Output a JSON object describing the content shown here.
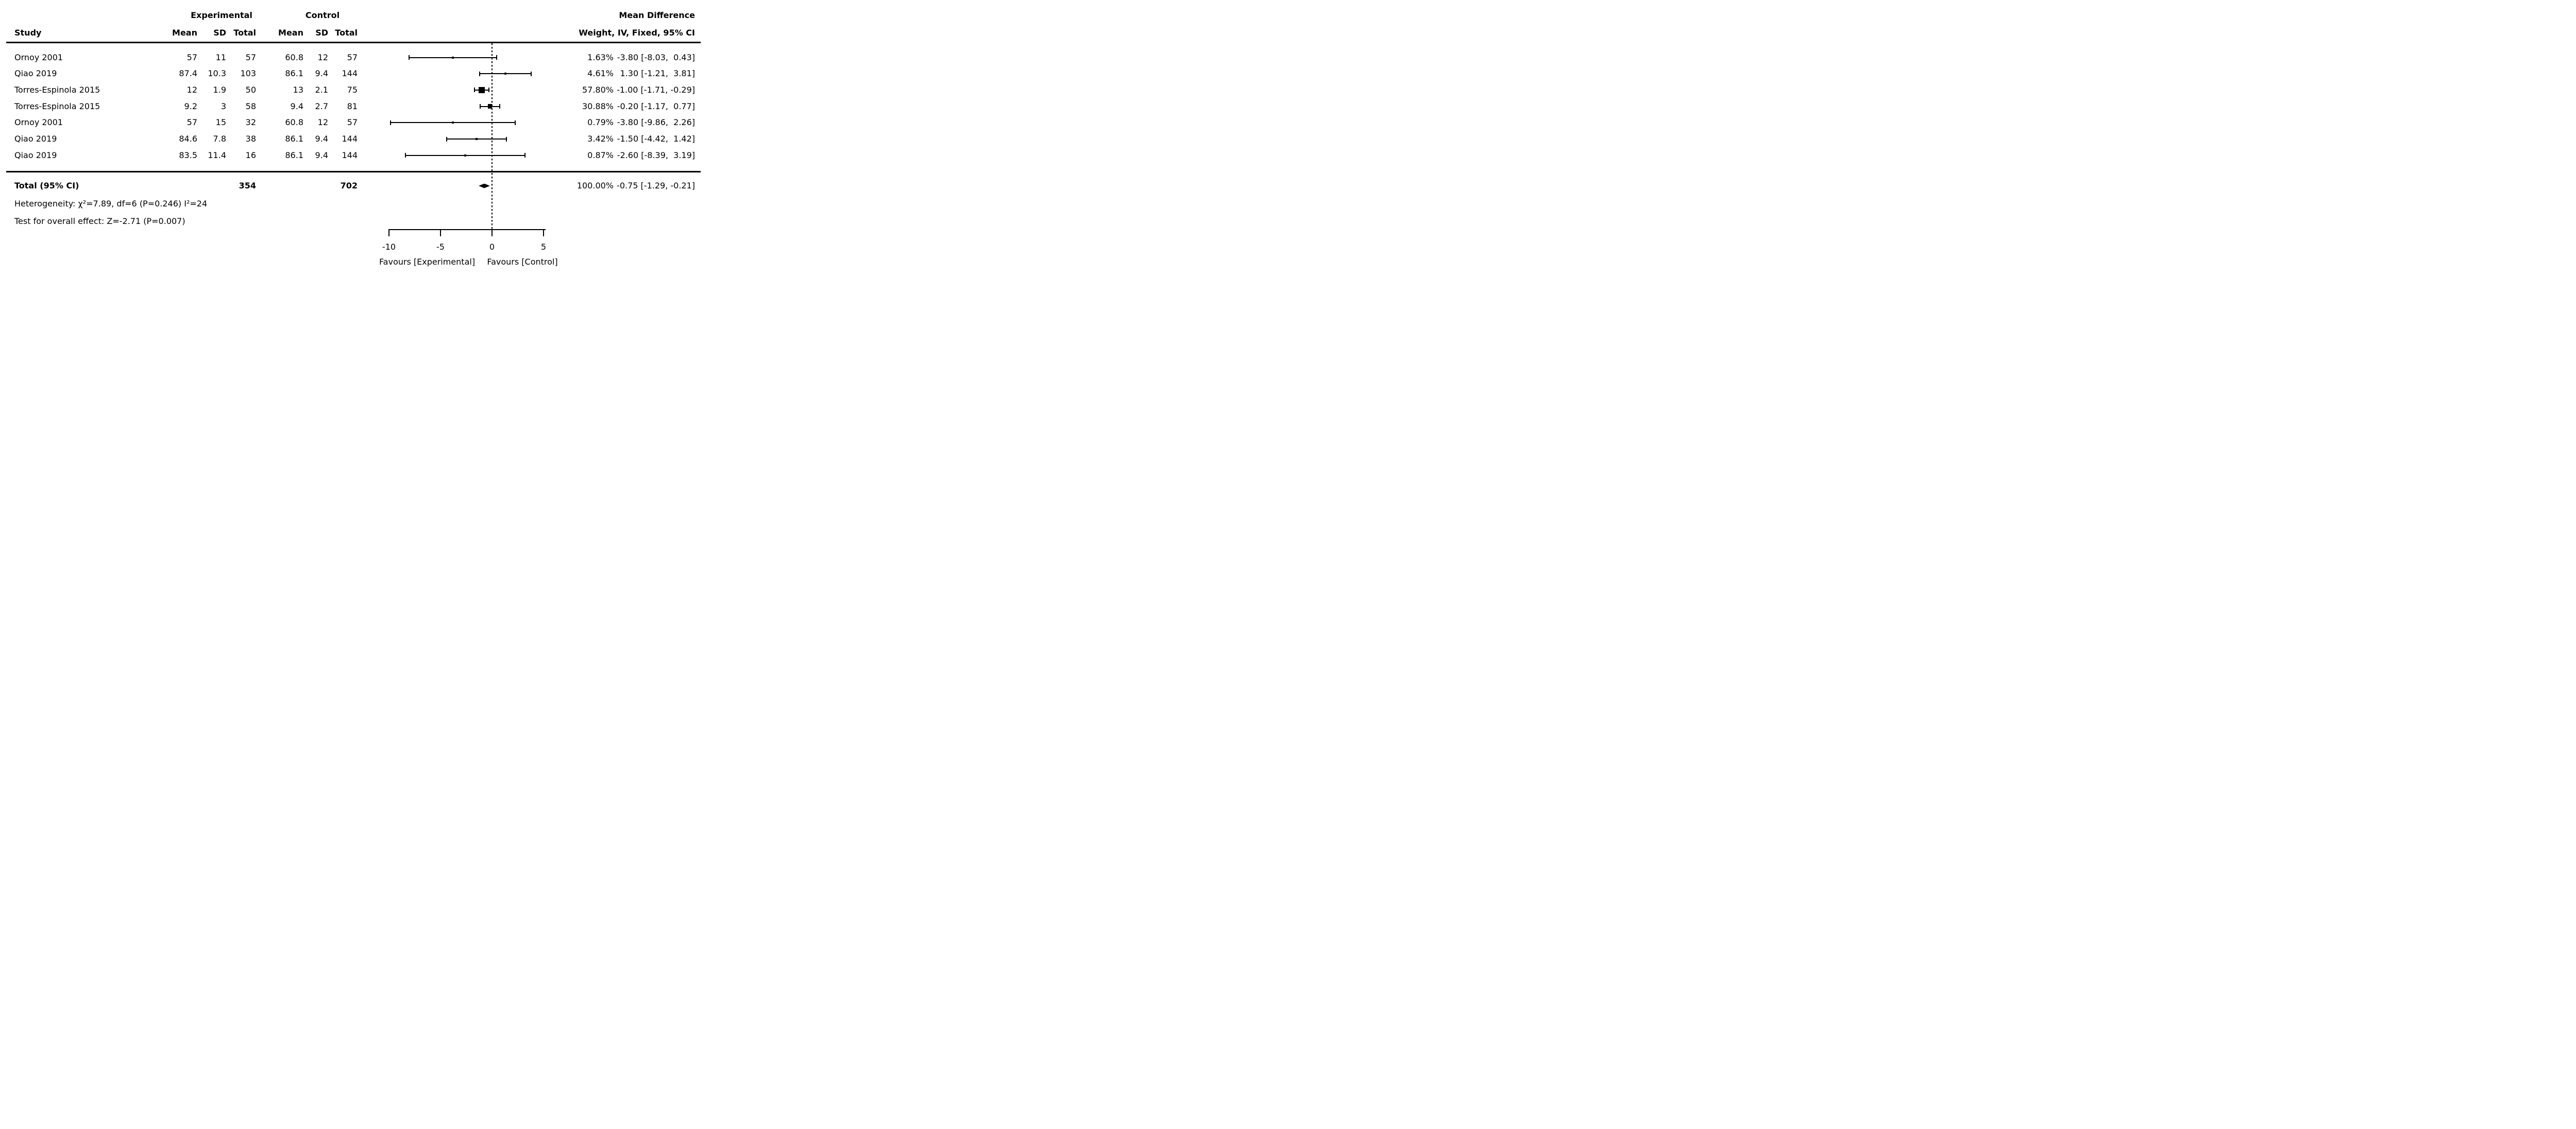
{
  "figure": {
    "group1_header": "Experimental",
    "group2_header": "Control",
    "effect_header": "Mean Difference",
    "columns": {
      "study": "Study",
      "mean": "Mean",
      "sd": "SD",
      "total": "Total",
      "weight_ci": "Weight, IV, Fixed, 95% CI"
    },
    "footer": {
      "total_label": "Total (95% CI)",
      "total_exp_n": "354",
      "total_ctrl_n": "702",
      "total_weight": "100.00%",
      "total_ci_text": "-0.75 [-1.29, -0.21]",
      "heterogeneity": "Heterogeneity: χ²=7.89, df=6 (P=0.246) I²=24",
      "overall_effect": "Test for overall effect: Z=-2.71 (P=0.007)"
    },
    "axis_labels": {
      "favours_left": "Favours [Experimental]",
      "favours_right": "Favours [Control]"
    }
  },
  "chart_data": {
    "type": "forest",
    "effect_measure": "Mean Difference",
    "model": "IV, Fixed, 95% CI",
    "grid": false,
    "axis": {
      "ticks": [
        -10,
        -5,
        0,
        5
      ],
      "xlim": [
        -10.2,
        5.3
      ],
      "zero_line": 0
    },
    "studies": [
      {
        "study": "Ornoy 2001",
        "exp_mean": "57",
        "exp_sd": "11",
        "exp_total": "57",
        "ctrl_mean": "60.8",
        "ctrl_sd": "12",
        "ctrl_total": "57",
        "weight": "1.63%",
        "weight_pct": 1.63,
        "md": -3.8,
        "ci_low": -8.03,
        "ci_high": 0.43,
        "ci_text": "-3.80 [-8.03,  0.43]"
      },
      {
        "study": "Qiao 2019",
        "exp_mean": "87.4",
        "exp_sd": "10.3",
        "exp_total": "103",
        "ctrl_mean": "86.1",
        "ctrl_sd": "9.4",
        "ctrl_total": "144",
        "weight": "4.61%",
        "weight_pct": 4.61,
        "md": 1.3,
        "ci_low": -1.21,
        "ci_high": 3.81,
        "ci_text": "1.30 [-1.21,  3.81]"
      },
      {
        "study": "Torres-Espinola 2015",
        "exp_mean": "12",
        "exp_sd": "1.9",
        "exp_total": "50",
        "ctrl_mean": "13",
        "ctrl_sd": "2.1",
        "ctrl_total": "75",
        "weight": "57.80%",
        "weight_pct": 57.8,
        "md": -1.0,
        "ci_low": -1.71,
        "ci_high": -0.29,
        "ci_text": "-1.00 [-1.71, -0.29]"
      },
      {
        "study": "Torres-Espinola 2015",
        "exp_mean": "9.2",
        "exp_sd": "3",
        "exp_total": "58",
        "ctrl_mean": "9.4",
        "ctrl_sd": "2.7",
        "ctrl_total": "81",
        "weight": "30.88%",
        "weight_pct": 30.88,
        "md": -0.2,
        "ci_low": -1.17,
        "ci_high": 0.77,
        "ci_text": "-0.20 [-1.17,  0.77]"
      },
      {
        "study": "Ornoy 2001",
        "exp_mean": "57",
        "exp_sd": "15",
        "exp_total": "32",
        "ctrl_mean": "60.8",
        "ctrl_sd": "12",
        "ctrl_total": "57",
        "weight": "0.79%",
        "weight_pct": 0.79,
        "md": -3.8,
        "ci_low": -9.86,
        "ci_high": 2.26,
        "ci_text": "-3.80 [-9.86,  2.26]"
      },
      {
        "study": "Qiao 2019",
        "exp_mean": "84.6",
        "exp_sd": "7.8",
        "exp_total": "38",
        "ctrl_mean": "86.1",
        "ctrl_sd": "9.4",
        "ctrl_total": "144",
        "weight": "3.42%",
        "weight_pct": 3.42,
        "md": -1.5,
        "ci_low": -4.42,
        "ci_high": 1.42,
        "ci_text": "-1.50 [-4.42,  1.42]"
      },
      {
        "study": "Qiao 2019",
        "exp_mean": "83.5",
        "exp_sd": "11.4",
        "exp_total": "16",
        "ctrl_mean": "86.1",
        "ctrl_sd": "9.4",
        "ctrl_total": "144",
        "weight": "0.87%",
        "weight_pct": 0.87,
        "md": -2.6,
        "ci_low": -8.39,
        "ci_high": 3.19,
        "ci_text": "-2.60 [-8.39,  3.19]"
      }
    ],
    "total": {
      "label": "Total (95% CI)",
      "exp_total": "354",
      "ctrl_total": "702",
      "weight": "100.00%",
      "md": -0.75,
      "ci_low": -1.29,
      "ci_high": -0.21,
      "ci_text": "-0.75 [-1.29, -0.21]"
    }
  }
}
